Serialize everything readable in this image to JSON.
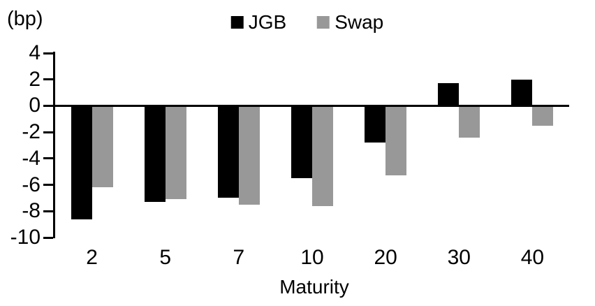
{
  "chart_data": {
    "type": "bar",
    "title": "",
    "xlabel": "Maturity",
    "ylabel": "(bp)",
    "categories": [
      "2",
      "5",
      "7",
      "10",
      "20",
      "30",
      "40"
    ],
    "series": [
      {
        "name": "JGB",
        "color": "#000000",
        "values": [
          -8.6,
          -7.3,
          -7.0,
          -5.5,
          -2.8,
          1.7,
          2.0
        ]
      },
      {
        "name": "Swap",
        "color": "#989898",
        "values": [
          -6.2,
          -7.1,
          -7.5,
          -7.6,
          -5.3,
          -2.4,
          -1.5
        ]
      }
    ],
    "ylim": [
      -10,
      4
    ],
    "yticks": [
      4,
      2,
      0,
      -2,
      -4,
      -6,
      -8,
      -10
    ],
    "grid": false,
    "legend_position": "top",
    "axis_color": "#000000"
  }
}
